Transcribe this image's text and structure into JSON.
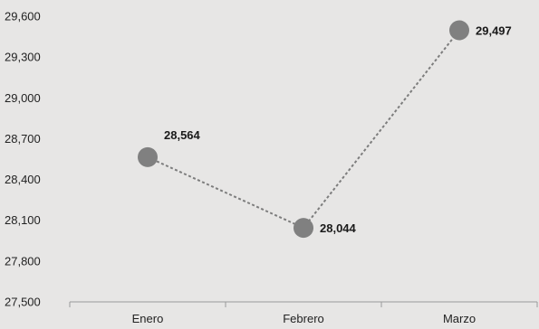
{
  "chart_data": {
    "type": "line",
    "categories": [
      "Enero",
      "Febrero",
      "Marzo"
    ],
    "series": [
      {
        "values": [
          28564,
          28044,
          29497
        ]
      }
    ],
    "data_labels": [
      "28,564",
      "28,044",
      "29,497"
    ],
    "yticks": [
      "27,500",
      "27,800",
      "28,100",
      "28,400",
      "28,700",
      "29,000",
      "29,300",
      "29,600"
    ],
    "ytick_values": [
      27500,
      27800,
      28100,
      28400,
      28700,
      29000,
      29300,
      29600
    ],
    "ylim": [
      27500,
      29600
    ],
    "grid": false,
    "line_style": "dotted",
    "colors": {
      "line": "#7d7d7d",
      "marker": "#808080",
      "axis": "#9a9a9a",
      "background": "#e7e6e5"
    }
  }
}
